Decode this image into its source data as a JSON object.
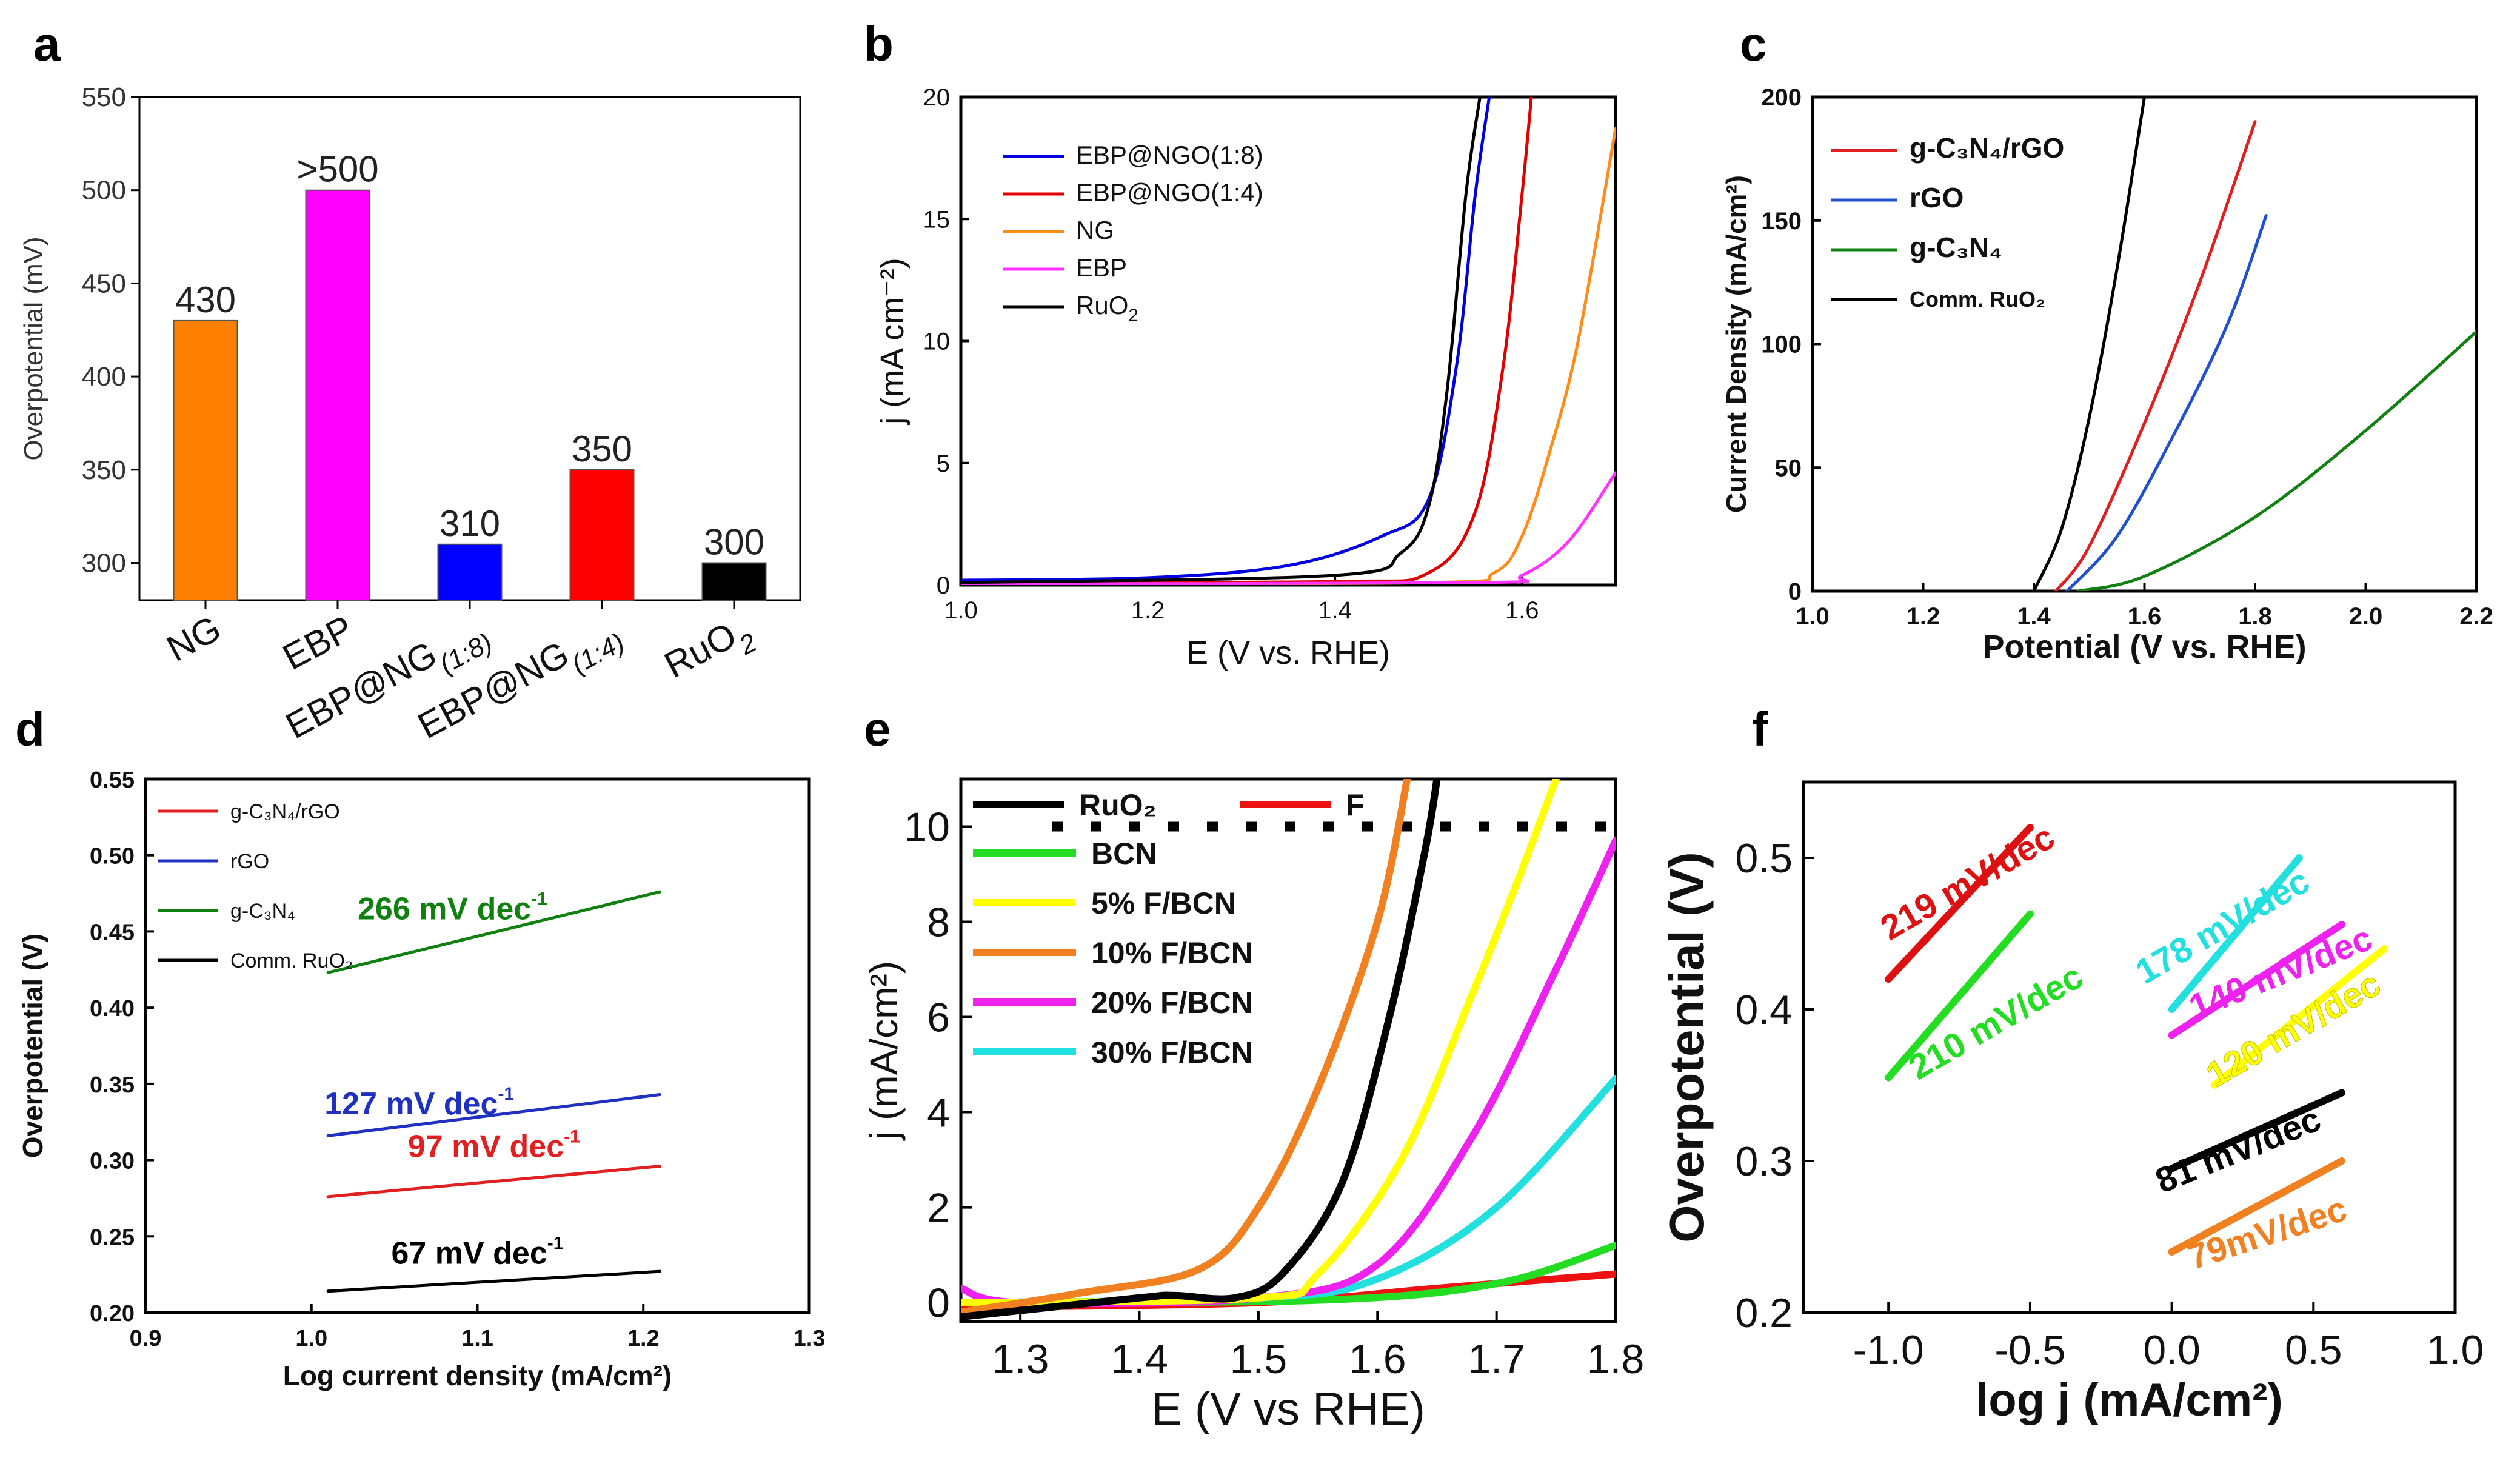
{
  "panels": [
    {
      "id": "a",
      "letter": "a",
      "type": "bar",
      "ylabel": "Overpotential (mV)",
      "ylim": [
        280,
        550
      ],
      "yticks": [
        300,
        350,
        400,
        450,
        500,
        550
      ],
      "categories": [
        {
          "name": "NG",
          "label": "NG",
          "sub": "",
          "value": 430,
          "color": "#ff8000",
          "display": "430"
        },
        {
          "name": "EBP",
          "label": "EBP",
          "sub": "",
          "value": 500,
          "color": "#ff00ff",
          "display": ">500"
        },
        {
          "name": "EBP@NG(1:8)",
          "label": "EBP@NG",
          "sub": "(1:8)",
          "value": 310,
          "color": "#0000ff",
          "display": "310"
        },
        {
          "name": "EBP@NG(1:4)",
          "label": "EBP@NG",
          "sub": "(1:4)",
          "value": 350,
          "color": "#ff0000",
          "display": "350"
        },
        {
          "name": "RuO2",
          "label": "RuO",
          "sub": "2",
          "value": 300,
          "color": "#000000",
          "display": "300"
        }
      ]
    },
    {
      "id": "b",
      "letter": "b",
      "type": "line",
      "xlabel": "E (V vs. RHE)",
      "ylabel": "j (mA cm⁻²)",
      "xlim": [
        1.0,
        1.7
      ],
      "ylim": [
        0,
        20
      ],
      "xticks": [
        1.0,
        1.2,
        1.4,
        1.6
      ],
      "yticks": [
        0,
        5,
        10,
        15,
        20
      ],
      "legend": [
        {
          "label": "EBP@NGO(1:8)",
          "color": "#0000e0"
        },
        {
          "label": "EBP@NGO(1:4)",
          "color": "#e00000"
        },
        {
          "label": "NG",
          "color": "#ff8c1a"
        },
        {
          "label": "EBP",
          "color": "#ff33ff"
        },
        {
          "label": "RuO",
          "sub": "2",
          "color": "#000000"
        }
      ],
      "series": [
        {
          "name": "EBP@NGO(1:8)",
          "color": "#0000e0",
          "points": [
            [
              1.0,
              0.2
            ],
            [
              1.2,
              0.3
            ],
            [
              1.35,
              0.8
            ],
            [
              1.45,
              2.0
            ],
            [
              1.5,
              3.5
            ],
            [
              1.53,
              9
            ],
            [
              1.55,
              16
            ],
            [
              1.565,
              20
            ]
          ]
        },
        {
          "name": "EBP@NGO(1:4)",
          "color": "#e00000",
          "points": [
            [
              1.0,
              0.1
            ],
            [
              1.4,
              0.15
            ],
            [
              1.5,
              0.5
            ],
            [
              1.55,
              3
            ],
            [
              1.58,
              9
            ],
            [
              1.6,
              16
            ],
            [
              1.61,
              20
            ]
          ]
        },
        {
          "name": "NG",
          "color": "#ff8c1a",
          "points": [
            [
              1.0,
              0.05
            ],
            [
              1.5,
              0.1
            ],
            [
              1.57,
              0.5
            ],
            [
              1.6,
              2
            ],
            [
              1.63,
              5.5
            ],
            [
              1.66,
              10
            ],
            [
              1.7,
              18.7
            ]
          ]
        },
        {
          "name": "EBP",
          "color": "#ff33ff",
          "points": [
            [
              1.0,
              0.05
            ],
            [
              1.55,
              0.1
            ],
            [
              1.6,
              0.4
            ],
            [
              1.65,
              1.8
            ],
            [
              1.7,
              4.6
            ]
          ]
        },
        {
          "name": "RuO2",
          "color": "#000000",
          "points": [
            [
              1.0,
              0.1
            ],
            [
              1.4,
              0.4
            ],
            [
              1.47,
              1.3
            ],
            [
              1.5,
              3.2
            ],
            [
              1.52,
              8
            ],
            [
              1.54,
              16
            ],
            [
              1.555,
              20
            ]
          ]
        }
      ]
    },
    {
      "id": "c",
      "letter": "c",
      "type": "line",
      "xlabel": "Potential (V vs. RHE)",
      "ylabel": "Current Density (mA/cm²)",
      "xlim": [
        1.0,
        2.2
      ],
      "ylim": [
        0,
        200
      ],
      "xticks": [
        1.0,
        1.2,
        1.4,
        1.6,
        1.8,
        2.0,
        2.2
      ],
      "yticks": [
        0,
        50,
        100,
        150,
        200
      ],
      "legend": [
        {
          "label": "g-C₃N₄/rGO",
          "color": "#e02020"
        },
        {
          "label": "rGO",
          "color": "#2050d0"
        },
        {
          "label": "g-C₃N₄",
          "color": "#108010"
        },
        {
          "label": "Comm. RuO₂",
          "color": "#000000"
        }
      ],
      "series": [
        {
          "name": "g-C3N4/rGO",
          "color": "#e02020",
          "points": [
            [
              1.44,
              0
            ],
            [
              1.5,
              18
            ],
            [
              1.6,
              68
            ],
            [
              1.7,
              125
            ],
            [
              1.8,
              190
            ]
          ]
        },
        {
          "name": "rGO",
          "color": "#2050d0",
          "points": [
            [
              1.46,
              0
            ],
            [
              1.55,
              22
            ],
            [
              1.65,
              62
            ],
            [
              1.75,
              108
            ],
            [
              1.82,
              152
            ]
          ]
        },
        {
          "name": "g-C3N4",
          "color": "#108010",
          "points": [
            [
              1.48,
              0
            ],
            [
              1.6,
              6
            ],
            [
              1.8,
              30
            ],
            [
              2.0,
              65
            ],
            [
              2.2,
              105
            ]
          ]
        },
        {
          "name": "Comm. RuO2",
          "color": "#000000",
          "points": [
            [
              1.4,
              0
            ],
            [
              1.45,
              25
            ],
            [
              1.5,
              70
            ],
            [
              1.55,
              130
            ],
            [
              1.6,
              200
            ]
          ]
        }
      ]
    },
    {
      "id": "d",
      "letter": "d",
      "type": "line",
      "xlabel": "Log current density (mA/cm²)",
      "ylabel": "Overpotential (V)",
      "xlim": [
        0.9,
        1.3
      ],
      "ylim": [
        0.2,
        0.55
      ],
      "xticks": [
        0.9,
        1.0,
        1.1,
        1.2,
        1.3
      ],
      "yticks": [
        0.2,
        0.25,
        0.3,
        0.35,
        0.4,
        0.45,
        0.5,
        0.55
      ],
      "legend": [
        {
          "label": "g-C₃N₄/rGO",
          "color": "#e02020"
        },
        {
          "label": "rGO",
          "color": "#2030c0"
        },
        {
          "label": "g-C₃N₄",
          "color": "#108010"
        },
        {
          "label": "Comm. RuO₂",
          "color": "#000000"
        }
      ],
      "series": [
        {
          "name": "g-C3N4/rGO",
          "color": "#e02020",
          "points": [
            [
              1.01,
              0.276
            ],
            [
              1.21,
              0.296
            ]
          ]
        },
        {
          "name": "rGO",
          "color": "#2030c0",
          "points": [
            [
              1.01,
              0.316
            ],
            [
              1.21,
              0.343
            ]
          ]
        },
        {
          "name": "g-C3N4",
          "color": "#108010",
          "points": [
            [
              1.01,
              0.423
            ],
            [
              1.21,
              0.476
            ]
          ]
        },
        {
          "name": "Comm. RuO2",
          "color": "#000000",
          "points": [
            [
              1.01,
              0.214
            ],
            [
              1.21,
              0.227
            ]
          ]
        }
      ],
      "annotations": [
        {
          "text": "266 mV dec",
          "sup": "-1",
          "color": "#108010",
          "x": 1.085,
          "y": 0.458
        },
        {
          "text": "127 mV dec",
          "sup": "-1",
          "color": "#2030c0",
          "x": 1.065,
          "y": 0.33
        },
        {
          "text": "97 mV dec",
          "sup": "-1",
          "color": "#e02020",
          "x": 1.11,
          "y": 0.302
        },
        {
          "text": "67 mV dec",
          "sup": "-1",
          "color": "#000000",
          "x": 1.1,
          "y": 0.232
        }
      ]
    },
    {
      "id": "e",
      "letter": "e",
      "type": "line",
      "xlabel": "E (V vs RHE)",
      "ylabel": "j (mA/cm²)",
      "xlim": [
        1.25,
        1.8
      ],
      "ylim": [
        -0.4,
        11
      ],
      "xticks": [
        1.3,
        1.4,
        1.5,
        1.6,
        1.7,
        1.8
      ],
      "yticks": [
        0,
        2,
        4,
        6,
        8,
        10
      ],
      "reference_line": 10,
      "legend": [
        {
          "label": "RuO₂",
          "color": "#000000"
        },
        {
          "label": "F",
          "color": "#ee1111"
        },
        {
          "label": "BCN",
          "color": "#22dd22"
        },
        {
          "label": "5% F/BCN",
          "color": "#ffff00"
        },
        {
          "label": "10% F/BCN",
          "color": "#f08020"
        },
        {
          "label": "20% F/BCN",
          "color": "#ee22ee"
        },
        {
          "label": "30% F/BCN",
          "color": "#22e0e0"
        }
      ],
      "series": [
        {
          "name": "F",
          "color": "#ee1111",
          "points": [
            [
              1.25,
              -0.1
            ],
            [
              1.5,
              0
            ],
            [
              1.65,
              0.3
            ],
            [
              1.8,
              0.6
            ]
          ]
        },
        {
          "name": "BCN",
          "color": "#22dd22",
          "points": [
            [
              1.25,
              0
            ],
            [
              1.55,
              0.05
            ],
            [
              1.7,
              0.4
            ],
            [
              1.8,
              1.2
            ]
          ]
        },
        {
          "name": "30% F/BCN",
          "color": "#22e0e0",
          "points": [
            [
              1.25,
              0
            ],
            [
              1.5,
              0.1
            ],
            [
              1.6,
              0.5
            ],
            [
              1.7,
              2
            ],
            [
              1.8,
              4.7
            ]
          ]
        },
        {
          "name": "20% F/BCN",
          "color": "#ee22ee",
          "points": [
            [
              1.25,
              0.3
            ],
            [
              1.3,
              0
            ],
            [
              1.5,
              0.1
            ],
            [
              1.6,
              0.8
            ],
            [
              1.68,
              3.5
            ],
            [
              1.75,
              7
            ],
            [
              1.8,
              9.7
            ]
          ]
        },
        {
          "name": "5% F/BCN",
          "color": "#ffff00",
          "points": [
            [
              1.25,
              0
            ],
            [
              1.5,
              0.1
            ],
            [
              1.55,
              0.6
            ],
            [
              1.62,
              3
            ],
            [
              1.68,
              6.5
            ],
            [
              1.72,
              9
            ],
            [
              1.75,
              11
            ]
          ]
        },
        {
          "name": "10% F/BCN",
          "color": "#f08020",
          "points": [
            [
              1.25,
              -0.2
            ],
            [
              1.35,
              0.2
            ],
            [
              1.45,
              0.7
            ],
            [
              1.5,
              2
            ],
            [
              1.55,
              4.5
            ],
            [
              1.6,
              8
            ],
            [
              1.625,
              11
            ]
          ]
        },
        {
          "name": "RuO2",
          "color": "#000000",
          "points": [
            [
              1.25,
              -0.3
            ],
            [
              1.4,
              0.1
            ],
            [
              1.43,
              0.15
            ],
            [
              1.48,
              0.1
            ],
            [
              1.52,
              0.6
            ],
            [
              1.57,
              2.5
            ],
            [
              1.61,
              6
            ],
            [
              1.64,
              9.5
            ],
            [
              1.65,
              11
            ]
          ]
        }
      ]
    },
    {
      "id": "f",
      "letter": "f",
      "type": "line",
      "xlabel": "log j (mA/cm²)",
      "ylabel": "Overpotential (V)",
      "xlim": [
        -1.3,
        1.0
      ],
      "ylim": [
        0.2,
        0.55
      ],
      "xticks": [
        -1.0,
        -0.5,
        0.0,
        0.5,
        1.0
      ],
      "yticks": [
        0.2,
        0.3,
        0.4,
        0.5
      ],
      "series": [
        {
          "name": "219 mV/dec",
          "color": "#dd1111",
          "points": [
            [
              -1.0,
              0.42
            ],
            [
              -0.5,
              0.52
            ]
          ]
        },
        {
          "name": "210 mV/dec",
          "color": "#22dd22",
          "points": [
            [
              -1.0,
              0.355
            ],
            [
              -0.5,
              0.463
            ]
          ]
        },
        {
          "name": "178 mV/dec",
          "color": "#22e0e0",
          "points": [
            [
              0.0,
              0.4
            ],
            [
              0.45,
              0.5
            ]
          ]
        },
        {
          "name": "140 mV/dec",
          "color": "#ee22ee",
          "points": [
            [
              0.0,
              0.383
            ],
            [
              0.6,
              0.456
            ]
          ]
        },
        {
          "name": "120 mV/dec",
          "color": "#ffff00",
          "points": [
            [
              0.15,
              0.35
            ],
            [
              0.75,
              0.44
            ]
          ]
        },
        {
          "name": "81 mV/dec",
          "color": "#000000",
          "points": [
            [
              0.0,
              0.295
            ],
            [
              0.6,
              0.345
            ]
          ]
        },
        {
          "name": "79mV/dec",
          "color": "#f08020",
          "points": [
            [
              0.0,
              0.24
            ],
            [
              0.6,
              0.3
            ]
          ]
        }
      ],
      "annotations": [
        {
          "text": "219 mV/dec",
          "color": "#dd1111",
          "x": -0.7,
          "y": 0.477,
          "rot": -30
        },
        {
          "text": "210 mV/dec",
          "color": "#22dd22",
          "x": -0.6,
          "y": 0.385,
          "rot": -30
        },
        {
          "text": "178 mV/dec",
          "color": "#22e0e0",
          "x": 0.2,
          "y": 0.448,
          "rot": -30
        },
        {
          "text": "140 mV/dec",
          "color": "#ee22ee",
          "x": 0.4,
          "y": 0.417,
          "rot": -22
        },
        {
          "text": "120 mV/dec",
          "color": "#ffff00",
          "x": 0.45,
          "y": 0.38,
          "rot": -30
        },
        {
          "text": "81 mV/dec",
          "color": "#000000",
          "x": 0.25,
          "y": 0.3,
          "rot": -22
        },
        {
          "text": "79mV/dec",
          "color": "#f08020",
          "x": 0.35,
          "y": 0.245,
          "rot": -18
        }
      ]
    }
  ]
}
